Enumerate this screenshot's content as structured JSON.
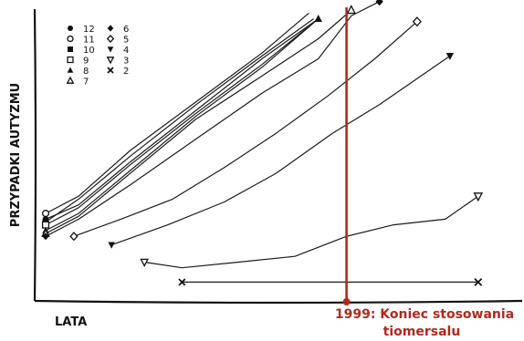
{
  "chart_data": {
    "type": "line",
    "ylabel": "PRZYPADKI AUTYZMU",
    "xlabel": "LATA",
    "annotation": {
      "line1": "1999: Koniec stosowania",
      "line2": "tiomersalu",
      "color": "#b02a1e"
    },
    "legend_placement": "top-left",
    "legend": [
      {
        "marker": "filled-circle",
        "label": "12"
      },
      {
        "marker": "open-circle",
        "label": "11"
      },
      {
        "marker": "filled-square",
        "label": "10"
      },
      {
        "marker": "open-square",
        "label": "9"
      },
      {
        "marker": "filled-triangle",
        "label": "8"
      },
      {
        "marker": "open-triangle",
        "label": "7"
      },
      {
        "marker": "filled-diamond",
        "label": "6"
      },
      {
        "marker": "open-diamond",
        "label": "5"
      },
      {
        "marker": "filled-down-triangle",
        "label": "4"
      },
      {
        "marker": "open-down-triangle",
        "label": "3"
      },
      {
        "marker": "x",
        "label": "2"
      }
    ],
    "xlim": [
      0,
      100
    ],
    "ylim": [
      0,
      100
    ],
    "grid": false,
    "event_x": 64,
    "series": [
      {
        "label": "12",
        "marker": "filled-circle",
        "points": [
          [
            0,
            26
          ],
          [
            7,
            31
          ],
          [
            18,
            46
          ],
          [
            32,
            64
          ],
          [
            46,
            82
          ],
          [
            58,
            96
          ]
        ],
        "end_marker": false
      },
      {
        "label": "11",
        "marker": "open-circle",
        "points": [
          [
            0,
            28
          ],
          [
            7,
            34
          ],
          [
            18,
            50
          ],
          [
            32,
            67
          ],
          [
            46,
            84
          ],
          [
            56,
            98
          ]
        ],
        "end_marker": false
      },
      {
        "label": "10",
        "marker": "filled-square",
        "points": [
          [
            0,
            25
          ],
          [
            7,
            33
          ],
          [
            18,
            48
          ],
          [
            32,
            66
          ],
          [
            46,
            83
          ],
          [
            57,
            96
          ]
        ],
        "end_marker": false
      },
      {
        "label": "9",
        "marker": "open-square",
        "points": [
          [
            0,
            24
          ],
          [
            7,
            30
          ],
          [
            18,
            45
          ],
          [
            32,
            63
          ],
          [
            46,
            80
          ],
          [
            58,
            96
          ]
        ],
        "end_marker": false
      },
      {
        "label": "8",
        "marker": "filled-triangle",
        "points": [
          [
            0,
            22
          ],
          [
            7,
            28
          ],
          [
            18,
            43
          ],
          [
            32,
            62
          ],
          [
            46,
            79
          ],
          [
            58,
            96
          ]
        ],
        "end_marker": true
      },
      {
        "label": "7",
        "marker": "open-triangle",
        "points": [
          [
            0,
            21
          ],
          [
            7,
            27
          ],
          [
            18,
            42
          ],
          [
            32,
            61
          ],
          [
            46,
            76
          ],
          [
            58,
            89
          ],
          [
            65,
            99
          ]
        ],
        "end_marker": true
      },
      {
        "label": "6",
        "marker": "filled-diamond",
        "points": [
          [
            0,
            20
          ],
          [
            7,
            26
          ],
          [
            18,
            38
          ],
          [
            32,
            54
          ],
          [
            46,
            70
          ],
          [
            58,
            82
          ],
          [
            65,
            97
          ],
          [
            71,
            102
          ]
        ],
        "end_marker": true
      },
      {
        "label": "5",
        "marker": "open-diamond",
        "points": [
          [
            6,
            20
          ],
          [
            16,
            26
          ],
          [
            27,
            33
          ],
          [
            38,
            44
          ],
          [
            49,
            56
          ],
          [
            60,
            69
          ],
          [
            70,
            82
          ],
          [
            79,
            95
          ]
        ],
        "end_marker": true
      },
      {
        "label": "4",
        "marker": "filled-down-triangle",
        "points": [
          [
            14,
            17
          ],
          [
            26,
            24
          ],
          [
            38,
            32
          ],
          [
            49,
            42
          ],
          [
            61,
            56
          ],
          [
            71,
            66
          ],
          [
            86,
            83
          ]
        ],
        "end_marker": true
      },
      {
        "label": "3",
        "marker": "open-down-triangle",
        "points": [
          [
            21,
            11
          ],
          [
            29,
            9
          ],
          [
            41,
            11
          ],
          [
            53,
            13
          ],
          [
            64,
            20
          ],
          [
            74,
            24
          ],
          [
            85,
            26
          ],
          [
            92,
            34
          ]
        ],
        "end_marker": true
      },
      {
        "label": "2",
        "marker": "x",
        "points": [
          [
            29,
            4
          ],
          [
            46,
            4
          ],
          [
            62,
            4
          ],
          [
            78,
            4
          ],
          [
            92,
            4
          ]
        ],
        "end_marker": true
      }
    ]
  }
}
